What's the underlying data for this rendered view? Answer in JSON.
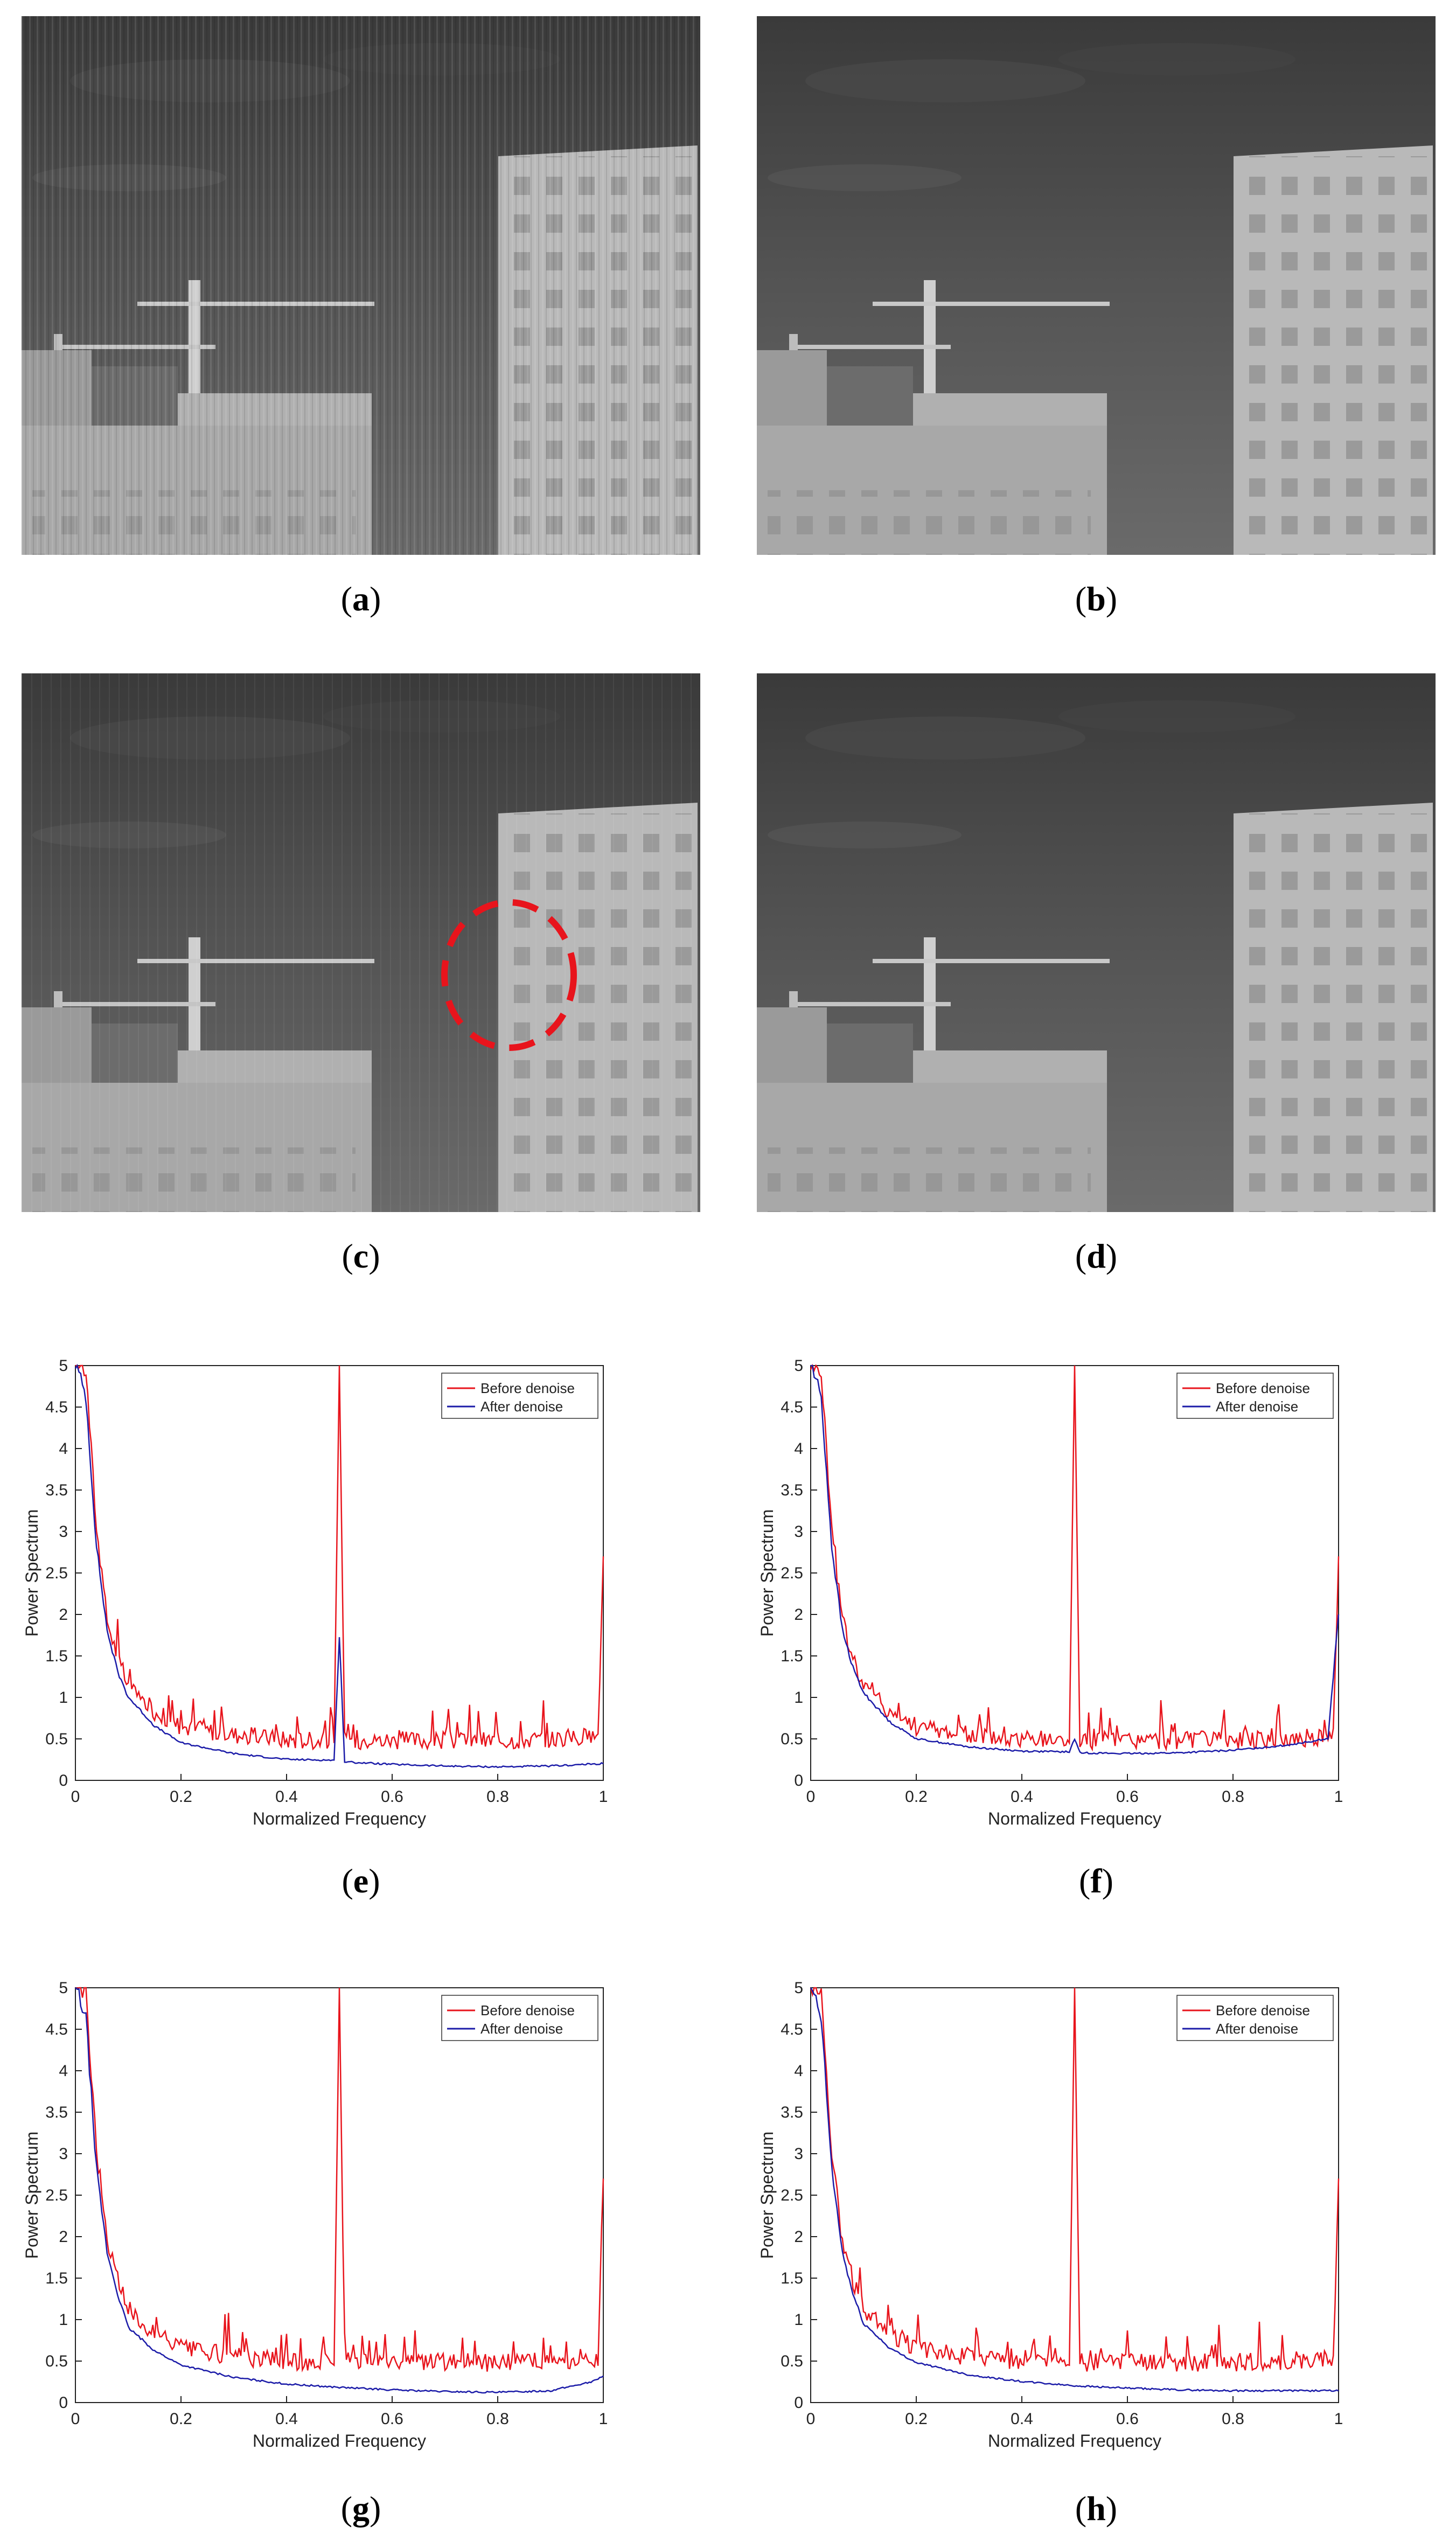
{
  "captions": [
    "a",
    "b",
    "c",
    "d",
    "e",
    "f",
    "g",
    "h"
  ],
  "colors": {
    "before": "#e8141c",
    "after": "#1b1ba8",
    "annotation": "#e8141c"
  },
  "chart_data": [
    {
      "type": "line",
      "panel": "e",
      "xlabel": "Normalized Frequency",
      "ylabel": "Power Spectrum",
      "xlim": [
        0,
        1
      ],
      "ylim": [
        0,
        5
      ],
      "xticks": [
        "0",
        "0.2",
        "0.4",
        "0.6",
        "0.8",
        "1"
      ],
      "yticks": [
        "0",
        "0.5",
        "1",
        "1.5",
        "2",
        "2.5",
        "3",
        "3.5",
        "4",
        "4.5",
        "5"
      ],
      "legend": "top-right",
      "series": [
        {
          "name": "Before denoise",
          "x": [
            0.0,
            0.02,
            0.04,
            0.06,
            0.08,
            0.1,
            0.15,
            0.2,
            0.3,
            0.4,
            0.49,
            0.5,
            0.51,
            0.6,
            0.7,
            0.8,
            0.9,
            0.99,
            1.0
          ],
          "y": [
            5,
            4.9,
            3.0,
            1.9,
            1.45,
            1.1,
            0.8,
            0.62,
            0.52,
            0.46,
            0.45,
            5,
            0.45,
            0.45,
            0.45,
            0.45,
            0.47,
            0.5,
            2.7
          ]
        },
        {
          "name": "After denoise",
          "x": [
            0.0,
            0.02,
            0.04,
            0.06,
            0.08,
            0.1,
            0.15,
            0.2,
            0.3,
            0.4,
            0.49,
            0.5,
            0.51,
            0.6,
            0.7,
            0.8,
            0.9,
            1.0
          ],
          "y": [
            5,
            4.6,
            2.8,
            1.8,
            1.3,
            1.0,
            0.65,
            0.45,
            0.32,
            0.25,
            0.24,
            1.75,
            0.22,
            0.19,
            0.17,
            0.16,
            0.17,
            0.2
          ]
        }
      ]
    },
    {
      "type": "line",
      "panel": "f",
      "xlabel": "Normalized Frequency",
      "ylabel": "Power Spectrum",
      "xlim": [
        0,
        1
      ],
      "ylim": [
        0,
        5
      ],
      "xticks": [
        "0",
        "0.2",
        "0.4",
        "0.6",
        "0.8",
        "1"
      ],
      "yticks": [
        "0",
        "0.5",
        "1",
        "1.5",
        "2",
        "2.5",
        "3",
        "3.5",
        "4",
        "4.5",
        "5"
      ],
      "legend": "top-right",
      "series": [
        {
          "name": "Before denoise",
          "x": [
            0.0,
            0.02,
            0.04,
            0.06,
            0.08,
            0.1,
            0.15,
            0.2,
            0.3,
            0.4,
            0.49,
            0.5,
            0.51,
            0.6,
            0.7,
            0.8,
            0.9,
            0.99,
            1.0
          ],
          "y": [
            5,
            4.9,
            3.0,
            1.9,
            1.45,
            1.1,
            0.8,
            0.62,
            0.52,
            0.46,
            0.45,
            5,
            0.45,
            0.45,
            0.45,
            0.45,
            0.47,
            0.5,
            2.7
          ]
        },
        {
          "name": "After denoise",
          "x": [
            0.0,
            0.02,
            0.04,
            0.06,
            0.08,
            0.1,
            0.15,
            0.2,
            0.3,
            0.4,
            0.49,
            0.5,
            0.51,
            0.6,
            0.7,
            0.8,
            0.9,
            0.98,
            1.0
          ],
          "y": [
            5,
            4.6,
            2.8,
            1.8,
            1.35,
            1.05,
            0.7,
            0.5,
            0.4,
            0.35,
            0.34,
            0.5,
            0.33,
            0.32,
            0.33,
            0.36,
            0.42,
            0.5,
            2.0
          ]
        }
      ]
    },
    {
      "type": "line",
      "panel": "g",
      "xlabel": "Normalized Frequency",
      "ylabel": "Power Spectrum",
      "xlim": [
        0,
        1
      ],
      "ylim": [
        0,
        5
      ],
      "xticks": [
        "0",
        "0.2",
        "0.4",
        "0.6",
        "0.8",
        "1"
      ],
      "yticks": [
        "0",
        "0.5",
        "1",
        "1.5",
        "2",
        "2.5",
        "3",
        "3.5",
        "4",
        "4.5",
        "5"
      ],
      "legend": "top-right",
      "series": [
        {
          "name": "Before denoise",
          "x": [
            0.0,
            0.02,
            0.04,
            0.06,
            0.08,
            0.1,
            0.15,
            0.2,
            0.3,
            0.4,
            0.49,
            0.5,
            0.51,
            0.6,
            0.7,
            0.8,
            0.9,
            0.99,
            1.0
          ],
          "y": [
            5,
            4.9,
            3.0,
            1.9,
            1.45,
            1.1,
            0.8,
            0.62,
            0.52,
            0.46,
            0.45,
            5,
            0.45,
            0.45,
            0.45,
            0.45,
            0.47,
            0.5,
            2.7
          ]
        },
        {
          "name": "After denoise",
          "x": [
            0.0,
            0.02,
            0.04,
            0.06,
            0.08,
            0.1,
            0.15,
            0.2,
            0.3,
            0.4,
            0.5,
            0.6,
            0.7,
            0.8,
            0.9,
            0.98,
            1.0
          ],
          "y": [
            5,
            4.6,
            2.8,
            1.8,
            1.3,
            0.9,
            0.62,
            0.45,
            0.3,
            0.22,
            0.18,
            0.15,
            0.13,
            0.12,
            0.14,
            0.25,
            0.32
          ]
        }
      ]
    },
    {
      "type": "line",
      "panel": "h",
      "xlabel": "Normalized Frequency",
      "ylabel": "Power Spectrum",
      "xlim": [
        0,
        1
      ],
      "ylim": [
        0,
        5
      ],
      "xticks": [
        "0",
        "0.2",
        "0.4",
        "0.6",
        "0.8",
        "1"
      ],
      "yticks": [
        "0",
        "0.5",
        "1",
        "1.5",
        "2",
        "2.5",
        "3",
        "3.5",
        "4",
        "4.5",
        "5"
      ],
      "legend": "top-right",
      "series": [
        {
          "name": "Before denoise",
          "x": [
            0.0,
            0.02,
            0.04,
            0.06,
            0.08,
            0.1,
            0.15,
            0.2,
            0.3,
            0.4,
            0.49,
            0.5,
            0.51,
            0.6,
            0.7,
            0.8,
            0.9,
            0.99,
            1.0
          ],
          "y": [
            5,
            4.9,
            3.0,
            1.9,
            1.45,
            1.1,
            0.8,
            0.62,
            0.52,
            0.46,
            0.45,
            5,
            0.45,
            0.45,
            0.45,
            0.45,
            0.47,
            0.5,
            2.7
          ]
        },
        {
          "name": "After denoise",
          "x": [
            0.0,
            0.02,
            0.04,
            0.06,
            0.08,
            0.1,
            0.15,
            0.2,
            0.3,
            0.4,
            0.5,
            0.6,
            0.7,
            0.8,
            0.9,
            1.0
          ],
          "y": [
            5,
            4.6,
            2.8,
            1.8,
            1.3,
            0.95,
            0.65,
            0.48,
            0.33,
            0.25,
            0.2,
            0.17,
            0.15,
            0.14,
            0.14,
            0.14
          ]
        }
      ]
    }
  ]
}
